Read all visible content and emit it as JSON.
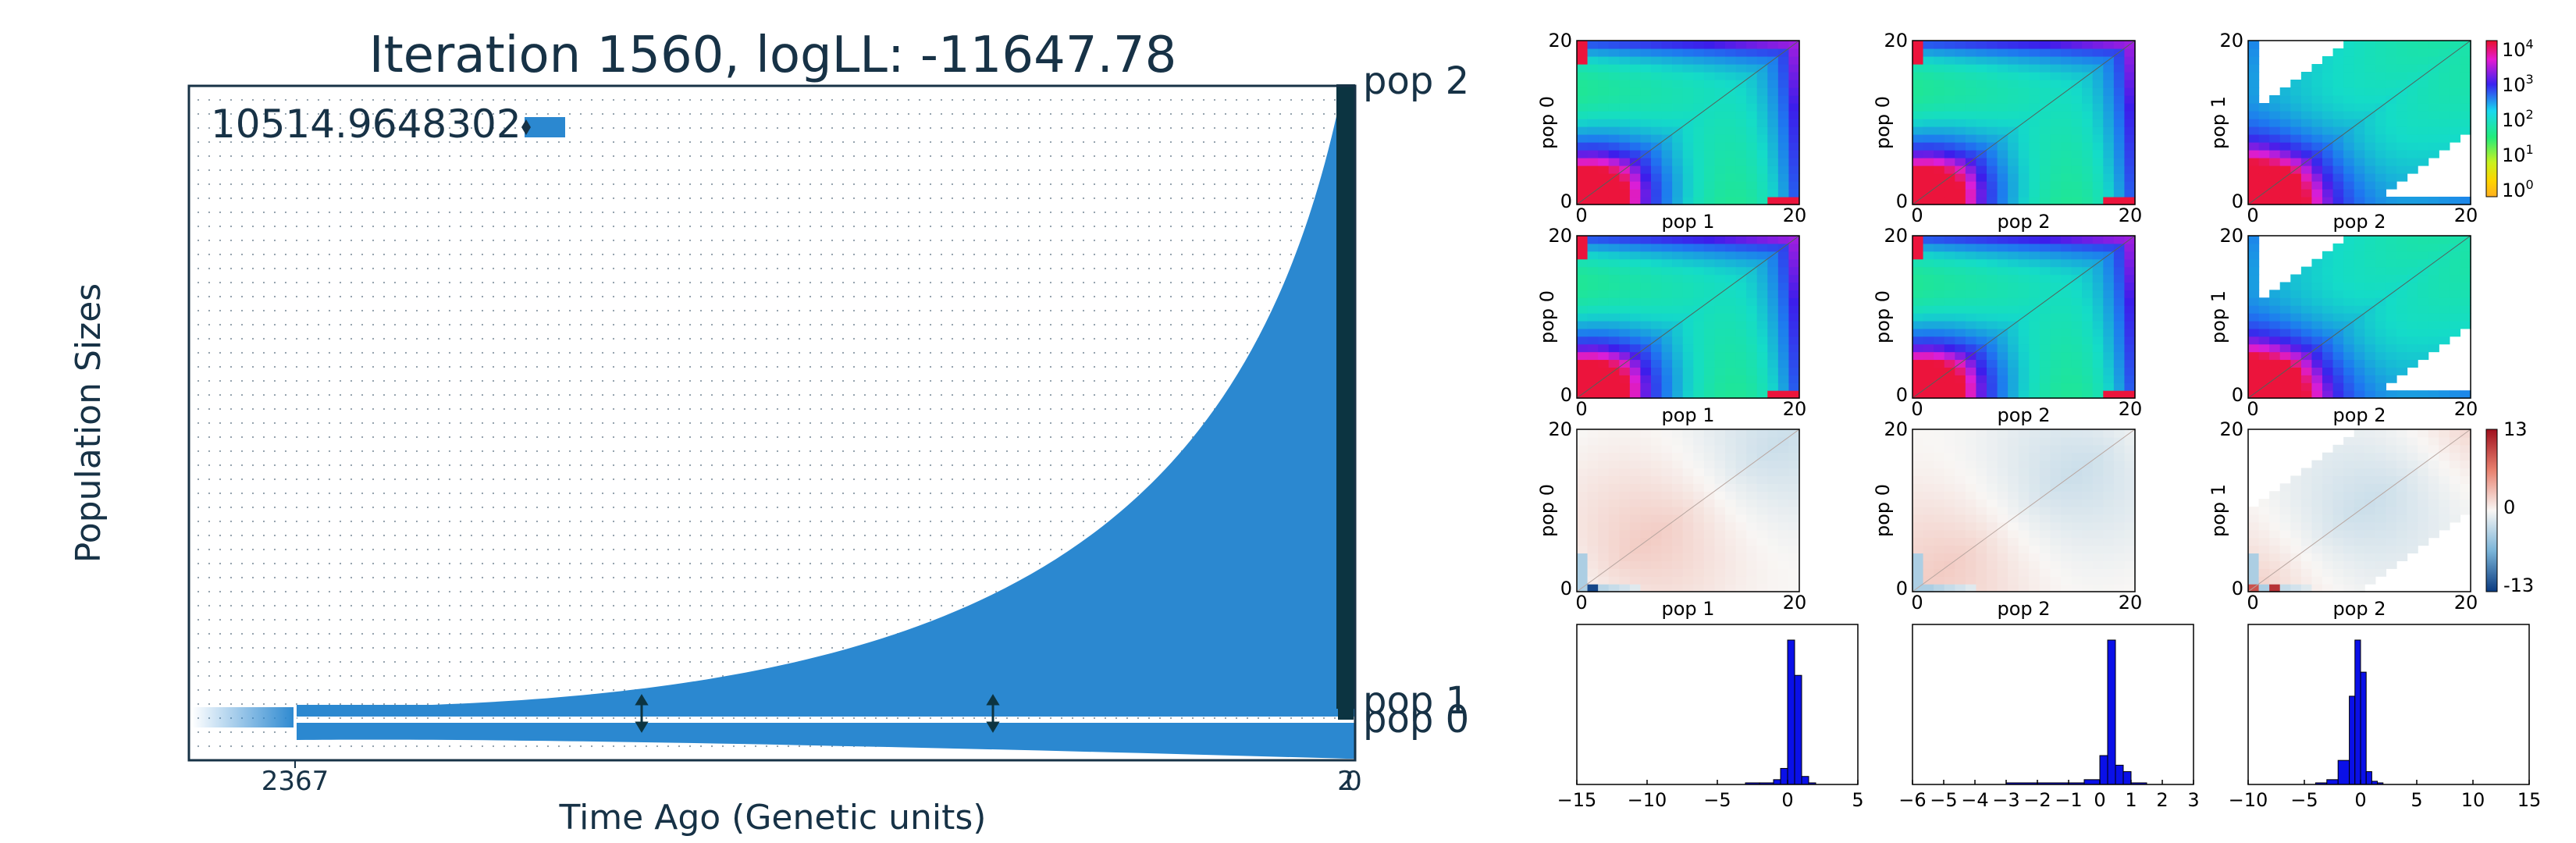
{
  "colors": {
    "text": "#173246",
    "pop_fill": "#2b88d0",
    "edge": "#0c3441",
    "hist_bar": "#0a10e8",
    "res_pos": "#c0504d",
    "res_neg": "#2e6fb0"
  },
  "left_panel": {
    "title": "Iteration 1560, logLL:  -11647.78",
    "ylabel": "Population Sizes",
    "xlabel": "Time Ago (Genetic units)",
    "size_label": "10514.9648302",
    "pop_labels": [
      "pop 2",
      "pop 1",
      "pop 0"
    ],
    "x_ticks": [
      "2367",
      "2",
      "0"
    ]
  },
  "chart_data": [
    {
      "type": "area",
      "title": "Iteration 1560, logLL:  -11647.78",
      "xlabel": "Time Ago (Genetic units)",
      "ylabel": "Population Sizes",
      "x_ticks": [
        "2367",
        "2",
        "0"
      ],
      "reference_size": 10514.9648302,
      "series": [
        {
          "name": "pop 2",
          "shape": "exponential growth toward present"
        },
        {
          "name": "pop 1",
          "shape": "constant narrow band"
        },
        {
          "name": "pop 0",
          "shape": "constant band tapering to present"
        }
      ]
    },
    {
      "type": "heatmap",
      "rows": [
        {
          "kind": "data_sfs",
          "panels": [
            {
              "ylabel": "pop 0",
              "xlabel": "pop 1"
            },
            {
              "ylabel": "pop 0",
              "xlabel": "pop 2"
            },
            {
              "ylabel": "pop 1",
              "xlabel": "pop 2"
            }
          ],
          "axis_ticks": [
            "0",
            "20"
          ]
        },
        {
          "kind": "model_sfs",
          "panels": [
            {
              "ylabel": "pop 0",
              "xlabel": "pop 1"
            },
            {
              "ylabel": "pop 0",
              "xlabel": "pop 2"
            },
            {
              "ylabel": "pop 1",
              "xlabel": "pop 2"
            }
          ],
          "axis_ticks": [
            "0",
            "20"
          ]
        },
        {
          "kind": "residuals",
          "panels": [
            {
              "ylabel": "pop 0",
              "xlabel": "pop 1"
            },
            {
              "ylabel": "pop 0",
              "xlabel": "pop 2"
            },
            {
              "ylabel": "pop 1",
              "xlabel": "pop 2"
            }
          ],
          "axis_ticks": [
            "0",
            "20"
          ]
        }
      ],
      "colorbar_log": [
        "10^4",
        "10^3",
        "10^2",
        "10^1",
        "10^0"
      ],
      "colorbar_res": [
        "13",
        "0",
        "-13"
      ]
    },
    {
      "type": "bar",
      "histograms": [
        {
          "xticks": [
            "−15",
            "−10",
            "−5",
            "0",
            "5"
          ],
          "xlim": [
            -15,
            5
          ],
          "bin_edges": [
            -3.0,
            -2.0,
            -1.0,
            -0.5,
            0.0,
            0.5,
            1.0,
            1.5,
            2.0
          ],
          "values": [
            1,
            1,
            3,
            10,
            90,
            68,
            5,
            1
          ]
        },
        {
          "xticks": [
            "−6",
            "−5",
            "−4",
            "−3",
            "−2",
            "−1",
            "0",
            "1",
            "2",
            "3"
          ],
          "xlim": [
            -6,
            3
          ],
          "bin_edges": [
            -3.0,
            -1.0,
            -0.5,
            0.0,
            0.25,
            0.5,
            0.75,
            1.0,
            1.5
          ],
          "values": [
            1,
            1,
            3,
            18,
            90,
            12,
            8,
            1
          ]
        },
        {
          "xticks": [
            "−10",
            "−5",
            "0",
            "5",
            "10",
            "15"
          ],
          "xlim": [
            -10,
            15
          ],
          "bin_edges": [
            -4.0,
            -3.0,
            -2.0,
            -1.0,
            -0.5,
            0.0,
            0.5,
            1.0,
            1.5,
            2.0
          ],
          "values": [
            1,
            3,
            15,
            55,
            90,
            70,
            8,
            2,
            1
          ]
        }
      ]
    }
  ]
}
